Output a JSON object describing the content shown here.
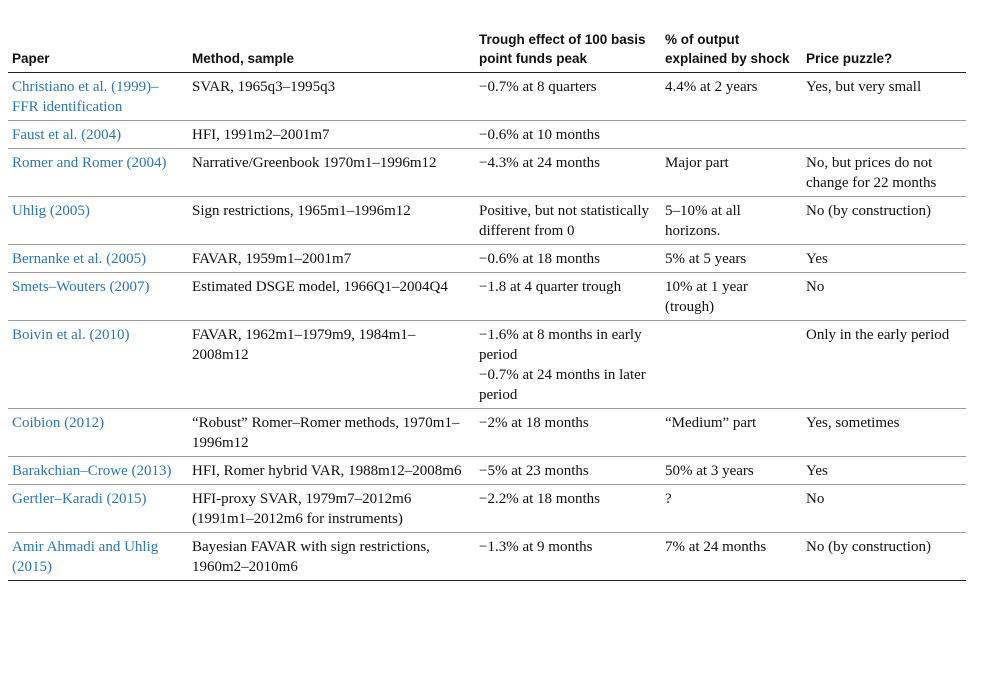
{
  "headers": [
    "Paper",
    "Method, sample",
    "Trough effect of 100 basis point funds peak",
    "% of output explained by shock",
    "Price puzzle?"
  ],
  "rows": [
    {
      "paper": "Christiano et al. (1999)–FFR identification",
      "method": "SVAR, 1965q3–1995q3",
      "trough": "−0.7% at 8 quarters",
      "output": "4.4% at 2 years",
      "puzzle": "Yes, but very small"
    },
    {
      "paper": "Faust et al. (2004)",
      "method": "HFI, 1991m2–2001m7",
      "trough": "−0.6% at 10 months",
      "output": "",
      "puzzle": ""
    },
    {
      "paper": "Romer and Romer (2004)",
      "method": "Narrative/Greenbook 1970m1–1996m12",
      "trough": "−4.3% at 24 months",
      "output": "Major part",
      "puzzle": "No, but prices do not change for 22 months"
    },
    {
      "paper": "Uhlig (2005)",
      "method": "Sign restrictions, 1965m1–1996m12",
      "trough": "Positive, but not statistically different from 0",
      "output": "5–10% at all horizons.",
      "puzzle": "No (by construction)"
    },
    {
      "paper": "Bernanke et al. (2005)",
      "method": "FAVAR, 1959m1–2001m7",
      "trough": "−0.6% at 18 months",
      "output": "5% at 5 years",
      "puzzle": "Yes"
    },
    {
      "paper": "Smets–Wouters (2007)",
      "method": "Estimated DSGE model, 1966Q1–2004Q4",
      "trough": "−1.8 at 4 quarter trough",
      "output": "10% at 1 year (trough)",
      "puzzle": "No"
    },
    {
      "paper": "Boivin et al. (2010)",
      "method": "FAVAR, 1962m1–1979m9, 1984m1–2008m12",
      "trough": "−1.6% at 8 months in early period",
      "trough2": "−0.7% at 24 months in later period",
      "output": "",
      "puzzle": "Only in the early period"
    },
    {
      "paper": "Coibion (2012)",
      "method": "“Robust” Romer–Romer methods, 1970m1–1996m12",
      "trough": "−2% at 18 months",
      "output": "“Medium” part",
      "puzzle": "Yes, sometimes"
    },
    {
      "paper": "Barakchian–Crowe (2013)",
      "method": "HFI, Romer hybrid VAR, 1988m12–2008m6",
      "trough": "−5% at 23 months",
      "output": "50% at 3 years",
      "puzzle": "Yes"
    },
    {
      "paper": "Gertler–Karadi (2015)",
      "method": "HFI-proxy SVAR, 1979m7–2012m6",
      "method2": "(1991m1–2012m6 for instruments)",
      "trough": "−2.2% at 18 months",
      "output": "?",
      "puzzle": "No"
    },
    {
      "paper": "Amir Ahmadi and Uhlig (2015)",
      "method": "Bayesian FAVAR with sign restrictions, 1960m2–2010m6",
      "trough": "−1.3% at 9 months",
      "output": "7% at 24 months",
      "puzzle": "No (by construction)"
    }
  ]
}
